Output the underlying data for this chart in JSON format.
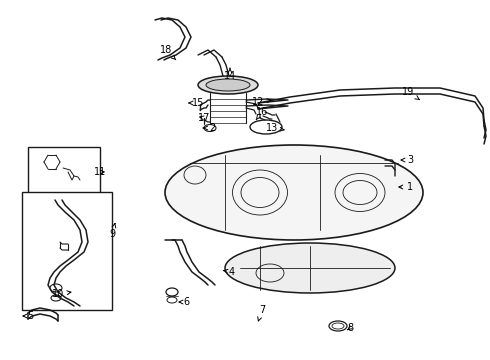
{
  "background_color": "#ffffff",
  "line_color": "#1a1a1a",
  "fig_width": 4.9,
  "fig_height": 3.6,
  "dpi": 100,
  "label_fontsize": 7.0
}
